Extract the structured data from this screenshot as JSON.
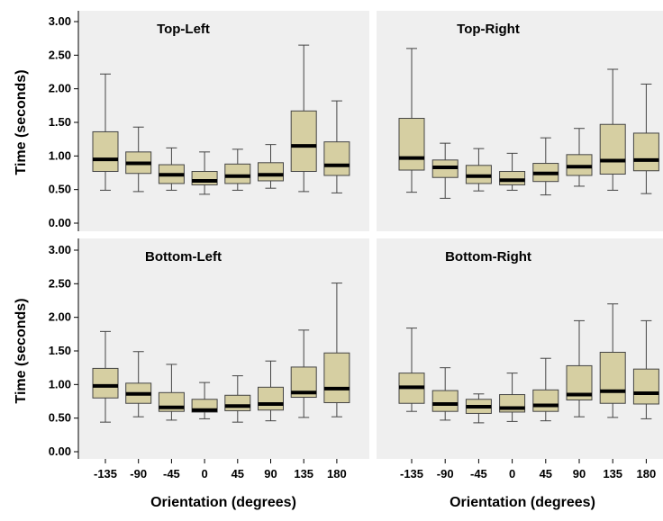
{
  "figure": {
    "ylabel": "Time (seconds)",
    "xlabel": "Orientation (degrees)"
  },
  "colors": {
    "panel_bg": "#efefef",
    "box_fill": "#d6cfa2",
    "box_stroke": "#444444",
    "median": "#000000",
    "axis": "#000000"
  },
  "chart_data": [
    {
      "type": "boxplot",
      "title": "Top-Left",
      "categories": [
        "-135",
        "-90",
        "-45",
        "0",
        "45",
        "90",
        "135",
        "180"
      ],
      "yticks": [
        "0.00",
        "0.50",
        "1.00",
        "1.50",
        "2.00",
        "2.50",
        "3.00"
      ],
      "ylim": [
        0,
        3
      ],
      "whisker_low": [
        0.49,
        0.47,
        0.49,
        0.43,
        0.49,
        0.52,
        0.47,
        0.45
      ],
      "q1": [
        0.77,
        0.74,
        0.59,
        0.57,
        0.59,
        0.63,
        0.77,
        0.71
      ],
      "median": [
        0.95,
        0.89,
        0.72,
        0.63,
        0.7,
        0.72,
        1.15,
        0.86
      ],
      "q3": [
        1.36,
        1.06,
        0.87,
        0.77,
        0.88,
        0.9,
        1.67,
        1.21
      ],
      "whisker_high": [
        2.22,
        1.43,
        1.12,
        1.06,
        1.1,
        1.17,
        2.65,
        1.82
      ]
    },
    {
      "type": "boxplot",
      "title": "Top-Right",
      "categories": [
        "-135",
        "-90",
        "-45",
        "0",
        "45",
        "90",
        "135",
        "180"
      ],
      "yticks": [
        "0.00",
        "0.50",
        "1.00",
        "1.50",
        "2.00",
        "2.50",
        "3.00"
      ],
      "ylim": [
        0,
        3
      ],
      "whisker_low": [
        0.46,
        0.37,
        0.48,
        0.49,
        0.42,
        0.55,
        0.49,
        0.44
      ],
      "q1": [
        0.79,
        0.68,
        0.59,
        0.57,
        0.62,
        0.71,
        0.73,
        0.78
      ],
      "median": [
        0.97,
        0.83,
        0.7,
        0.64,
        0.74,
        0.84,
        0.93,
        0.94
      ],
      "q3": [
        1.56,
        0.94,
        0.86,
        0.77,
        0.89,
        1.02,
        1.47,
        1.34
      ],
      "whisker_high": [
        2.6,
        1.19,
        1.11,
        1.04,
        1.27,
        1.41,
        2.29,
        2.07
      ]
    },
    {
      "type": "boxplot",
      "title": "Bottom-Left",
      "categories": [
        "-135",
        "-90",
        "-45",
        "0",
        "45",
        "90",
        "135",
        "180"
      ],
      "yticks": [
        "0.00",
        "0.50",
        "1.00",
        "1.50",
        "2.00",
        "2.50",
        "3.00"
      ],
      "ylim": [
        0,
        3
      ],
      "whisker_low": [
        0.44,
        0.52,
        0.47,
        0.49,
        0.44,
        0.46,
        0.51,
        0.52
      ],
      "q1": [
        0.8,
        0.72,
        0.6,
        0.59,
        0.61,
        0.62,
        0.81,
        0.73
      ],
      "median": [
        0.98,
        0.86,
        0.66,
        0.62,
        0.68,
        0.71,
        0.88,
        0.94
      ],
      "q3": [
        1.24,
        1.02,
        0.88,
        0.78,
        0.84,
        0.96,
        1.26,
        1.47
      ],
      "whisker_high": [
        1.79,
        1.49,
        1.3,
        1.03,
        1.13,
        1.35,
        1.81,
        2.51
      ]
    },
    {
      "type": "boxplot",
      "title": "Bottom-Right",
      "categories": [
        "-135",
        "-90",
        "-45",
        "0",
        "45",
        "90",
        "135",
        "180"
      ],
      "yticks": [
        "0.00",
        "0.50",
        "1.00",
        "1.50",
        "2.00",
        "2.50",
        "3.00"
      ],
      "ylim": [
        0,
        3
      ],
      "whisker_low": [
        0.6,
        0.47,
        0.43,
        0.45,
        0.46,
        0.52,
        0.51,
        0.49
      ],
      "q1": [
        0.72,
        0.6,
        0.57,
        0.59,
        0.6,
        0.77,
        0.72,
        0.71
      ],
      "median": [
        0.96,
        0.71,
        0.67,
        0.65,
        0.69,
        0.85,
        0.9,
        0.87
      ],
      "q3": [
        1.17,
        0.91,
        0.78,
        0.85,
        0.92,
        1.28,
        1.48,
        1.23
      ],
      "whisker_high": [
        1.84,
        1.25,
        0.86,
        1.17,
        1.39,
        1.95,
        2.2,
        1.95
      ]
    }
  ]
}
